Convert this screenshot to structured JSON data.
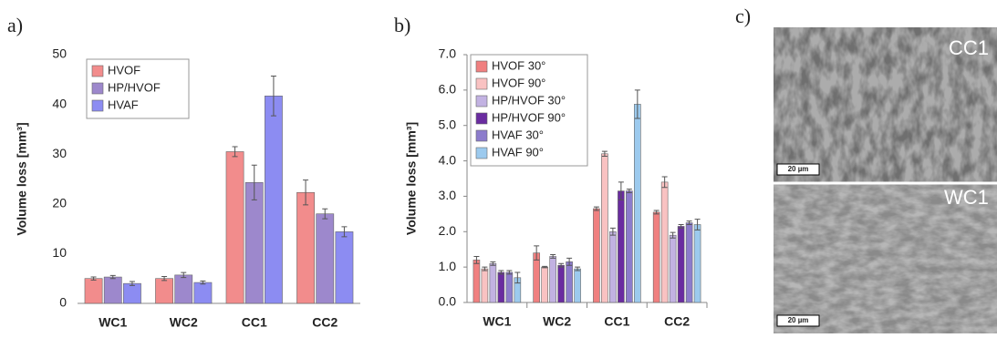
{
  "chart_data": [
    {
      "type": "bar",
      "panel": "a)",
      "ylabel": "Volume loss [mm³]",
      "categories": [
        "WC1",
        "WC2",
        "CC1",
        "CC2"
      ],
      "series": [
        {
          "name": "HVOF",
          "color": "#f28c8c",
          "values": [
            5.0,
            5.0,
            30.5,
            22.3
          ],
          "errors": [
            0.3,
            0.4,
            1.0,
            2.5
          ]
        },
        {
          "name": "HP/HVOF",
          "color": "#9d88cc",
          "values": [
            5.3,
            5.7,
            24.3,
            18.0
          ],
          "errors": [
            0.3,
            0.5,
            3.5,
            1.0
          ]
        },
        {
          "name": "HVAF",
          "color": "#8c8cf2",
          "values": [
            4.0,
            4.2,
            41.7,
            14.4
          ],
          "errors": [
            0.4,
            0.3,
            4.0,
            1.0
          ]
        }
      ],
      "ylim": [
        0,
        50
      ],
      "yticks": [
        0,
        10,
        20,
        30,
        40,
        50
      ],
      "legend": "upper left"
    },
    {
      "type": "bar",
      "panel": "b)",
      "ylabel": "Volume loss [mm³]",
      "categories": [
        "WC1",
        "WC2",
        "CC1",
        "CC2"
      ],
      "series": [
        {
          "name": "HVOF 30°",
          "color": "#f08080",
          "values": [
            1.2,
            1.4,
            2.65,
            2.55
          ],
          "errors": [
            0.1,
            0.2,
            0.05,
            0.05
          ]
        },
        {
          "name": "HVOF 90°",
          "color": "#f9c2c2",
          "values": [
            0.95,
            1.0,
            4.2,
            3.4
          ],
          "errors": [
            0.05,
            0.02,
            0.07,
            0.15
          ]
        },
        {
          "name": "HP/HVOF 30°",
          "color": "#c2b2e2",
          "values": [
            1.1,
            1.3,
            2.0,
            1.9
          ],
          "errors": [
            0.05,
            0.05,
            0.1,
            0.08
          ]
        },
        {
          "name": "HP/HVOF 90°",
          "color": "#6a2ca0",
          "values": [
            0.85,
            1.05,
            3.15,
            2.15
          ],
          "errors": [
            0.05,
            0.05,
            0.25,
            0.05
          ]
        },
        {
          "name": "HVAF 30°",
          "color": "#8c7ccc",
          "values": [
            0.85,
            1.15,
            3.15,
            2.25
          ],
          "errors": [
            0.05,
            0.1,
            0.05,
            0.05
          ]
        },
        {
          "name": "HVAF 90°",
          "color": "#9ccaee",
          "values": [
            0.7,
            0.95,
            5.6,
            2.2
          ],
          "errors": [
            0.15,
            0.05,
            0.4,
            0.15
          ]
        }
      ],
      "ylim": [
        0,
        7
      ],
      "yticks": [
        {
          "value": 0,
          "label": "0.0"
        },
        {
          "value": 1,
          "label": "1.0"
        },
        {
          "value": 2,
          "label": "2.0"
        },
        {
          "value": 3,
          "label": "3.0"
        },
        {
          "value": 4,
          "label": "4.0"
        },
        {
          "value": 5,
          "label": "5.0"
        },
        {
          "value": 6,
          "label": "6.0"
        },
        {
          "value": 7,
          "label": "7.0"
        }
      ],
      "legend": "upper left"
    }
  ],
  "micrograph": {
    "panel": "c)",
    "top_label": "CC1",
    "bottom_label": "WC1",
    "top_scale": "20 µm",
    "bottom_scale": "20 µm"
  }
}
